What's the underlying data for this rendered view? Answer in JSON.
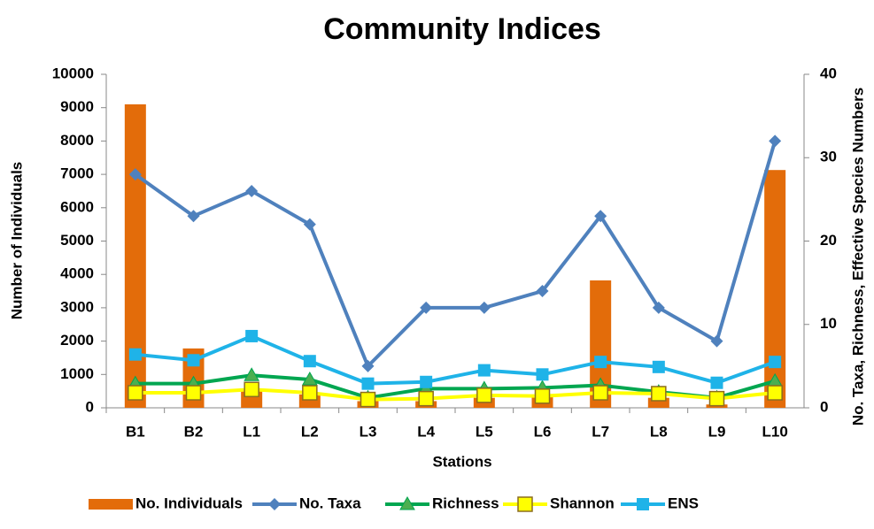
{
  "chart_data": {
    "type": "bar-line",
    "title": "Community Indices",
    "x_label": "Stations",
    "y_label": "Number of Individuals",
    "y2_label": "No. Taxa, Richness, Effective Species Numbers",
    "categories": [
      "B1",
      "B2",
      "L1",
      "L2",
      "L3",
      "L4",
      "L5",
      "L6",
      "L7",
      "L8",
      "L9",
      "L10"
    ],
    "ylim": [
      0,
      10000
    ],
    "yticks": [
      0,
      1000,
      2000,
      3000,
      4000,
      5000,
      6000,
      7000,
      8000,
      9000,
      10000
    ],
    "y2lim": [
      0,
      40
    ],
    "y2ticks": [
      0,
      10,
      20,
      30,
      40
    ],
    "grid": false,
    "legend": "bottom",
    "series": [
      {
        "name": "No. Individuals",
        "kind": "bar",
        "color": "#e36c0a",
        "values": [
          9100,
          1780,
          500,
          400,
          200,
          200,
          300,
          350,
          3820,
          300,
          100,
          7130
        ]
      },
      {
        "name": "No. Taxa",
        "kind": "line",
        "axis": "y2",
        "marker": "diamond",
        "color": "#4f81bd",
        "values": [
          28,
          23,
          26,
          22,
          5,
          12,
          12,
          14,
          23,
          12,
          8,
          32
        ]
      },
      {
        "name": "Richness",
        "kind": "line",
        "axis": "y2",
        "marker": "triangle",
        "color": "#00a650",
        "values": [
          2.9,
          2.9,
          3.9,
          3.4,
          1.2,
          2.3,
          2.3,
          2.4,
          2.7,
          1.9,
          1.2,
          3.2
        ]
      },
      {
        "name": "Shannon",
        "kind": "line",
        "axis": "y2",
        "marker": "square-outline",
        "color": "#ffff00",
        "values": [
          1.8,
          1.8,
          2.2,
          1.8,
          1.0,
          1.1,
          1.5,
          1.4,
          1.8,
          1.7,
          1.1,
          1.8
        ]
      },
      {
        "name": "ENS",
        "kind": "line",
        "axis": "y2",
        "marker": "square",
        "color": "#1fb3e8",
        "values": [
          6.4,
          5.7,
          8.6,
          5.6,
          2.9,
          3.1,
          4.5,
          4.0,
          5.5,
          4.9,
          3.0,
          5.5
        ]
      }
    ]
  }
}
